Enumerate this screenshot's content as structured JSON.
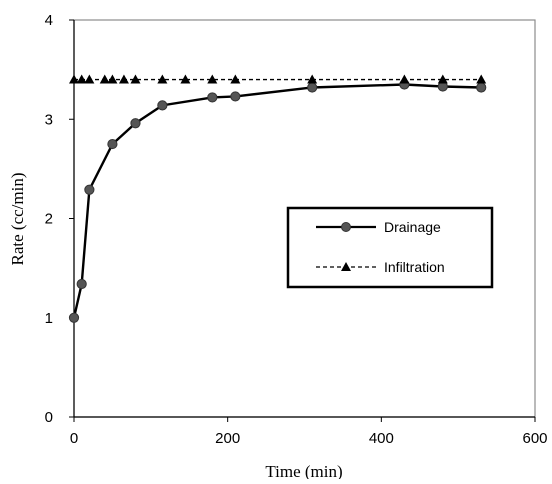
{
  "chart_data": {
    "type": "line",
    "title": "",
    "xlabel": "Time (min)",
    "ylabel": "Rate (cc/min)",
    "xlim": [
      0,
      600
    ],
    "ylim": [
      0,
      4
    ],
    "x_ticks": [
      0,
      200,
      400,
      600
    ],
    "y_ticks": [
      0,
      1,
      2,
      3,
      4
    ],
    "x_tick_labels": [
      "0",
      "200",
      "400",
      "600"
    ],
    "y_tick_labels": [
      "0",
      "1",
      "2",
      "3",
      "4"
    ],
    "grid": false,
    "legend_position": "right-center",
    "series": [
      {
        "name": "Drainage",
        "marker": "circle",
        "line_style": "solid",
        "color": "#000000",
        "marker_color": "#555555",
        "x": [
          0,
          10,
          20,
          50,
          80,
          115,
          180,
          210,
          310,
          430,
          480,
          530
        ],
        "y": [
          1.0,
          1.34,
          2.29,
          2.75,
          2.96,
          3.14,
          3.22,
          3.23,
          3.32,
          3.35,
          3.33,
          3.32
        ]
      },
      {
        "name": "Infiltration",
        "marker": "triangle",
        "line_style": "dashed",
        "color": "#000000",
        "marker_color": "#000000",
        "x": [
          0,
          10,
          20,
          40,
          50,
          65,
          80,
          115,
          145,
          180,
          210,
          310,
          430,
          480,
          530
        ],
        "y": [
          3.4,
          3.4,
          3.4,
          3.4,
          3.4,
          3.4,
          3.4,
          3.4,
          3.4,
          3.4,
          3.4,
          3.4,
          3.4,
          3.4,
          3.4
        ]
      }
    ]
  }
}
